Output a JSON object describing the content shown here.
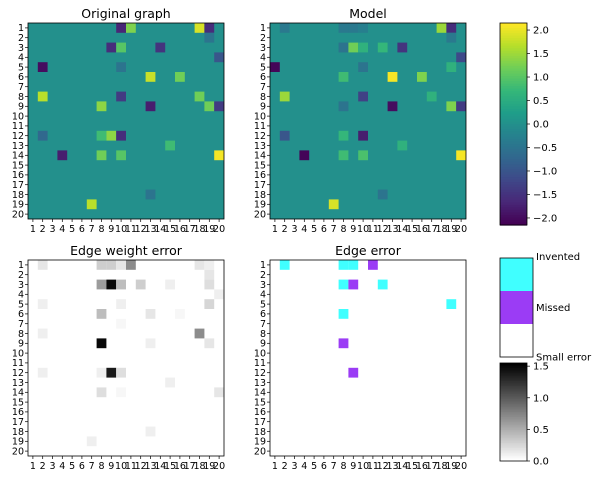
{
  "panels": {
    "original": {
      "title": "Original graph"
    },
    "model": {
      "title": "Model"
    },
    "weight_error": {
      "title": "Edge weight error"
    },
    "edge_error": {
      "title": "Edge error"
    }
  },
  "node_labels": [
    "1",
    "2",
    "3",
    "4",
    "5",
    "6",
    "7",
    "8",
    "9",
    "10",
    "11",
    "12",
    "13",
    "14",
    "15",
    "16",
    "17",
    "18",
    "19",
    "20"
  ],
  "colorbars": {
    "viridis": {
      "ticks": [
        "2.0",
        "1.5",
        "1.0",
        "0.5",
        "0.0",
        "−0.5",
        "−1.0",
        "−1.5",
        "−2.0"
      ],
      "tick_values": [
        2.0,
        1.5,
        1.0,
        0.5,
        0.0,
        -0.5,
        -1.0,
        -1.5,
        -2.0
      ],
      "range": [
        -2.15,
        2.15
      ]
    },
    "categories": {
      "labels": [
        "Invented",
        "Missed",
        "Small error"
      ],
      "colors": [
        "#40FFFF",
        "#9B3CF5",
        "#FFFFFF"
      ]
    },
    "gray": {
      "ticks": [
        "1.5",
        "1.0",
        "0.5",
        "0.0"
      ],
      "tick_values": [
        1.5,
        1.0,
        0.5,
        0.0
      ],
      "range": [
        0,
        1.55
      ]
    }
  },
  "chart_data": [
    {
      "type": "heatmap",
      "title": "Original graph",
      "rows": 20,
      "cols": 20,
      "colormap": "viridis",
      "background": 0.0,
      "cells": [
        [
          1,
          10,
          -1.7
        ],
        [
          1,
          11,
          1.3
        ],
        [
          1,
          18,
          1.9
        ],
        [
          1,
          19,
          -1.6
        ],
        [
          2,
          19,
          -0.5
        ],
        [
          3,
          9,
          -1.6
        ],
        [
          3,
          10,
          1.0
        ],
        [
          3,
          14,
          -1.5
        ],
        [
          4,
          20,
          -1.0
        ],
        [
          5,
          2,
          -2.0
        ],
        [
          5,
          10,
          -0.5
        ],
        [
          6,
          13,
          1.8
        ],
        [
          6,
          16,
          1.2
        ],
        [
          8,
          2,
          1.7
        ],
        [
          8,
          10,
          -1.4
        ],
        [
          8,
          18,
          1.2
        ],
        [
          9,
          8,
          1.4
        ],
        [
          9,
          13,
          -1.8
        ],
        [
          9,
          19,
          1.2
        ],
        [
          9,
          20,
          -1.4
        ],
        [
          12,
          2,
          -0.7
        ],
        [
          12,
          8,
          0.8
        ],
        [
          12,
          9,
          1.4
        ],
        [
          12,
          10,
          -1.6
        ],
        [
          13,
          15,
          0.8
        ],
        [
          14,
          4,
          -1.8
        ],
        [
          14,
          8,
          1.2
        ],
        [
          14,
          10,
          1.0
        ],
        [
          14,
          20,
          2.1
        ],
        [
          18,
          13,
          -0.5
        ],
        [
          19,
          7,
          1.7
        ]
      ]
    },
    {
      "type": "heatmap",
      "title": "Model",
      "rows": 20,
      "cols": 20,
      "colormap": "viridis",
      "background": 0.0,
      "cells": [
        [
          1,
          2,
          -0.4
        ],
        [
          1,
          8,
          -0.4
        ],
        [
          1,
          9,
          -0.4
        ],
        [
          1,
          10,
          -0.3
        ],
        [
          1,
          18,
          1.5
        ],
        [
          1,
          19,
          -1.6
        ],
        [
          2,
          19,
          -0.4
        ],
        [
          3,
          8,
          -0.5
        ],
        [
          3,
          9,
          1.2
        ],
        [
          3,
          10,
          0.6
        ],
        [
          3,
          12,
          0.7
        ],
        [
          3,
          14,
          -1.5
        ],
        [
          4,
          20,
          -1.2
        ],
        [
          5,
          1,
          -2.1
        ],
        [
          5,
          10,
          -0.5
        ],
        [
          5,
          19,
          0.6
        ],
        [
          6,
          8,
          0.8
        ],
        [
          6,
          13,
          2.1
        ],
        [
          6,
          16,
          1.3
        ],
        [
          8,
          2,
          1.5
        ],
        [
          8,
          10,
          -1.3
        ],
        [
          8,
          17,
          0.6
        ],
        [
          9,
          8,
          -0.5
        ],
        [
          9,
          13,
          -2.0
        ],
        [
          9,
          19,
          1.3
        ],
        [
          9,
          20,
          -1.4
        ],
        [
          12,
          2,
          -1.0
        ],
        [
          12,
          8,
          0.7
        ],
        [
          12,
          10,
          -1.8
        ],
        [
          13,
          14,
          0.6
        ],
        [
          14,
          4,
          -2.1
        ],
        [
          14,
          8,
          0.8
        ],
        [
          14,
          10,
          0.9
        ],
        [
          14,
          20,
          2.1
        ],
        [
          18,
          12,
          -0.5
        ],
        [
          19,
          7,
          1.9
        ]
      ]
    },
    {
      "type": "heatmap",
      "title": "Edge weight error",
      "rows": 20,
      "cols": 20,
      "colormap": "gray_r",
      "background": 0.0,
      "cells": [
        [
          1,
          2,
          0.15
        ],
        [
          1,
          8,
          0.3
        ],
        [
          1,
          9,
          0.3
        ],
        [
          1,
          10,
          0.15
        ],
        [
          1,
          11,
          0.7
        ],
        [
          1,
          18,
          0.15
        ],
        [
          1,
          19,
          0.1
        ],
        [
          2,
          19,
          0.15
        ],
        [
          3,
          8,
          0.6
        ],
        [
          3,
          9,
          1.5
        ],
        [
          3,
          10,
          0.4
        ],
        [
          3,
          12,
          0.3
        ],
        [
          3,
          15,
          0.1
        ],
        [
          3,
          19,
          0.2
        ],
        [
          4,
          20,
          0.1
        ],
        [
          5,
          2,
          0.1
        ],
        [
          5,
          10,
          0.1
        ],
        [
          5,
          19,
          0.25
        ],
        [
          6,
          8,
          0.4
        ],
        [
          6,
          13,
          0.15
        ],
        [
          6,
          16,
          0.05
        ],
        [
          7,
          10,
          0.05
        ],
        [
          8,
          2,
          0.1
        ],
        [
          8,
          18,
          0.7
        ],
        [
          9,
          8,
          1.5
        ],
        [
          9,
          13,
          0.1
        ],
        [
          9,
          19,
          0.15
        ],
        [
          12,
          2,
          0.1
        ],
        [
          12,
          8,
          0.1
        ],
        [
          12,
          9,
          1.4
        ],
        [
          12,
          10,
          0.2
        ],
        [
          13,
          15,
          0.1
        ],
        [
          14,
          8,
          0.2
        ],
        [
          14,
          10,
          0.05
        ],
        [
          14,
          20,
          0.15
        ],
        [
          18,
          13,
          0.1
        ],
        [
          19,
          7,
          0.1
        ]
      ]
    },
    {
      "type": "heatmap",
      "title": "Edge error",
      "rows": 20,
      "cols": 20,
      "colormap": "categorical",
      "categories": [
        "Invented",
        "Missed",
        "Small error"
      ],
      "cells": [
        [
          1,
          2,
          "Invented"
        ],
        [
          1,
          8,
          "Invented"
        ],
        [
          1,
          9,
          "Invented"
        ],
        [
          1,
          11,
          "Missed"
        ],
        [
          3,
          8,
          "Invented"
        ],
        [
          3,
          9,
          "Missed"
        ],
        [
          3,
          12,
          "Invented"
        ],
        [
          5,
          19,
          "Invented"
        ],
        [
          6,
          8,
          "Invented"
        ],
        [
          9,
          8,
          "Missed"
        ],
        [
          12,
          9,
          "Missed"
        ]
      ]
    }
  ]
}
